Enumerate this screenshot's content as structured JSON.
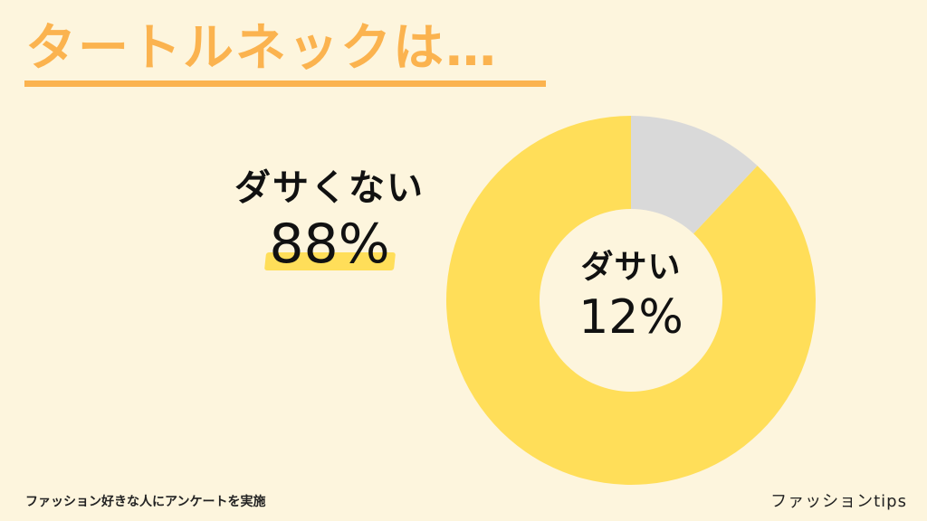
{
  "header": {
    "title": "タートルネックは…"
  },
  "callout": {
    "label": "ダサくない",
    "value": "88%"
  },
  "center": {
    "label": "ダサい",
    "value": "12%"
  },
  "footer": {
    "note": "ファッション好きな人にアンケートを実施",
    "brand": "ファッションtips"
  },
  "colors": {
    "background": "#fdf5dd",
    "title": "#fbb34f",
    "major_slice": "#ffde59",
    "minor_slice": "#d9d9d9",
    "hole": "#fdf5dd"
  },
  "chart_data": {
    "type": "pie",
    "categories": [
      "ダサい",
      "ダサくない"
    ],
    "values": [
      12,
      88
    ],
    "colors": [
      "#d9d9d9",
      "#ffde59"
    ]
  }
}
